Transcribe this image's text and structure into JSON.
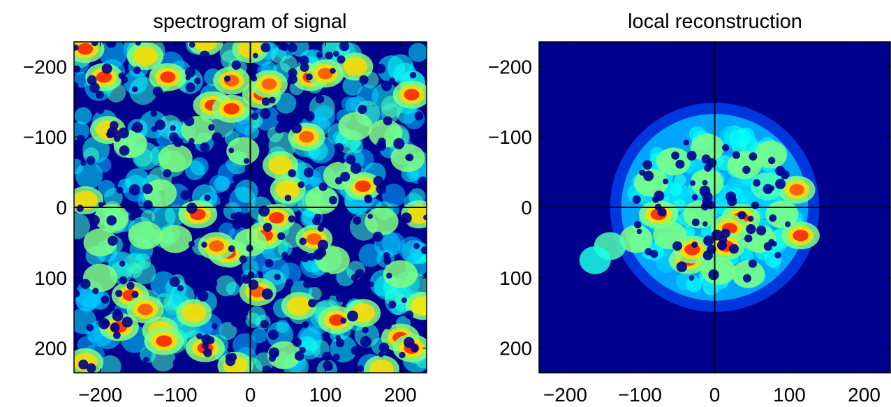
{
  "chart_data": [
    {
      "type": "heatmap",
      "title": "spectrogram of signal",
      "xlabel": "",
      "ylabel": "",
      "xlim": [
        -235,
        235
      ],
      "ylim": [
        -235,
        235
      ],
      "y_axis_reversed": true,
      "xticks": [
        -200,
        -100,
        0,
        100,
        200
      ],
      "yticks": [
        -200,
        -100,
        0,
        100,
        200
      ],
      "xtick_labels": [
        "−200",
        "−100",
        "0",
        "100",
        "200"
      ],
      "ytick_labels": [
        "−200",
        "−100",
        "0",
        "100",
        "200"
      ],
      "crosshair": {
        "x": 0,
        "y": 0
      },
      "colormap": "jet",
      "background_color": "#00008f",
      "coverage": "full",
      "grid": false,
      "hotspots": [
        [
          -220,
          -225,
          0.9
        ],
        [
          -195,
          -185,
          0.85
        ],
        [
          -140,
          -215,
          0.75
        ],
        [
          -110,
          -185,
          0.85
        ],
        [
          -60,
          -235,
          0.7
        ],
        [
          -25,
          -180,
          0.8
        ],
        [
          0,
          -225,
          0.75
        ],
        [
          -50,
          -145,
          1.0
        ],
        [
          -25,
          -140,
          0.95
        ],
        [
          15,
          -160,
          0.95
        ],
        [
          25,
          -175,
          0.8
        ],
        [
          80,
          -185,
          0.85
        ],
        [
          100,
          -190,
          0.8
        ],
        [
          140,
          -200,
          0.7
        ],
        [
          215,
          -160,
          0.85
        ],
        [
          -190,
          -110,
          0.7
        ],
        [
          -160,
          -90,
          0.55
        ],
        [
          -100,
          -70,
          0.6
        ],
        [
          -70,
          -110,
          0.55
        ],
        [
          75,
          -100,
          0.8
        ],
        [
          40,
          -60,
          0.7
        ],
        [
          140,
          -115,
          0.6
        ],
        [
          180,
          -105,
          0.55
        ],
        [
          -10,
          -80,
          0.5
        ],
        [
          210,
          -70,
          0.6
        ],
        [
          -70,
          10,
          0.95
        ],
        [
          -185,
          15,
          0.6
        ],
        [
          -220,
          -10,
          0.75
        ],
        [
          35,
          15,
          0.85
        ],
        [
          50,
          -25,
          0.7
        ],
        [
          150,
          -30,
          0.9
        ],
        [
          120,
          -45,
          0.6
        ],
        [
          175,
          20,
          0.55
        ],
        [
          -140,
          40,
          0.6
        ],
        [
          225,
          10,
          0.75
        ],
        [
          -30,
          65,
          1.0
        ],
        [
          -45,
          55,
          0.8
        ],
        [
          -100,
          45,
          0.55
        ],
        [
          20,
          40,
          0.85
        ],
        [
          85,
          45,
          0.8
        ],
        [
          110,
          75,
          0.55
        ],
        [
          200,
          95,
          0.6
        ],
        [
          -200,
          100,
          0.6
        ],
        [
          -160,
          125,
          0.85
        ],
        [
          -140,
          145,
          0.8
        ],
        [
          -175,
          170,
          1.0
        ],
        [
          -120,
          175,
          0.75
        ],
        [
          -115,
          190,
          1.0
        ],
        [
          -75,
          150,
          0.7
        ],
        [
          -60,
          200,
          0.95
        ],
        [
          10,
          120,
          0.8
        ],
        [
          65,
          140,
          0.7
        ],
        [
          115,
          160,
          0.85
        ],
        [
          150,
          150,
          0.7
        ],
        [
          200,
          185,
          0.9
        ],
        [
          215,
          200,
          0.85
        ],
        [
          -220,
          220,
          0.75
        ],
        [
          -20,
          225,
          0.7
        ],
        [
          45,
          210,
          0.55
        ],
        [
          175,
          230,
          0.7
        ],
        [
          -200,
          50,
          0.55
        ],
        [
          0,
          50,
          0.5
        ],
        [
          230,
          140,
          0.65
        ],
        [
          -120,
          -20,
          0.5
        ],
        [
          95,
          -10,
          0.5
        ]
      ]
    },
    {
      "type": "heatmap",
      "title": "local reconstruction",
      "xlabel": "",
      "ylabel": "",
      "xlim": [
        -235,
        235
      ],
      "ylim": [
        -235,
        235
      ],
      "y_axis_reversed": true,
      "xticks": [
        -200,
        -100,
        0,
        100,
        200
      ],
      "yticks": [
        -200,
        -100,
        0,
        100,
        200
      ],
      "xtick_labels": [
        "−200",
        "−100",
        "0",
        "100",
        "200"
      ],
      "ytick_labels": [
        "−200",
        "−100",
        "0",
        "100",
        "200"
      ],
      "crosshair": {
        "x": 0,
        "y": 0
      },
      "colormap": "jet",
      "background_color": "#00008f",
      "coverage": "disc",
      "disc": {
        "center": [
          0,
          0
        ],
        "radius": 125
      },
      "grid": false,
      "hotspots": [
        [
          -75,
          10,
          1.0
        ],
        [
          -35,
          75,
          1.0
        ],
        [
          -30,
          60,
          0.9
        ],
        [
          35,
          15,
          0.95
        ],
        [
          20,
          30,
          0.85
        ],
        [
          15,
          55,
          0.9
        ],
        [
          110,
          -25,
          0.8
        ],
        [
          115,
          40,
          0.9
        ],
        [
          -55,
          -65,
          0.6
        ],
        [
          -85,
          -35,
          0.6
        ],
        [
          -10,
          -85,
          0.55
        ],
        [
          40,
          -60,
          0.6
        ],
        [
          -20,
          10,
          0.55
        ],
        [
          60,
          45,
          0.5
        ],
        [
          75,
          -75,
          0.5
        ],
        [
          -105,
          45,
          0.5
        ],
        [
          5,
          90,
          0.6
        ],
        [
          45,
          95,
          0.5
        ],
        [
          -60,
          40,
          0.55
        ],
        [
          90,
          10,
          0.5
        ],
        [
          -140,
          55,
          0.45
        ],
        [
          -160,
          75,
          0.4
        ],
        [
          -10,
          -35,
          0.5
        ],
        [
          70,
          -30,
          0.45
        ]
      ]
    }
  ]
}
